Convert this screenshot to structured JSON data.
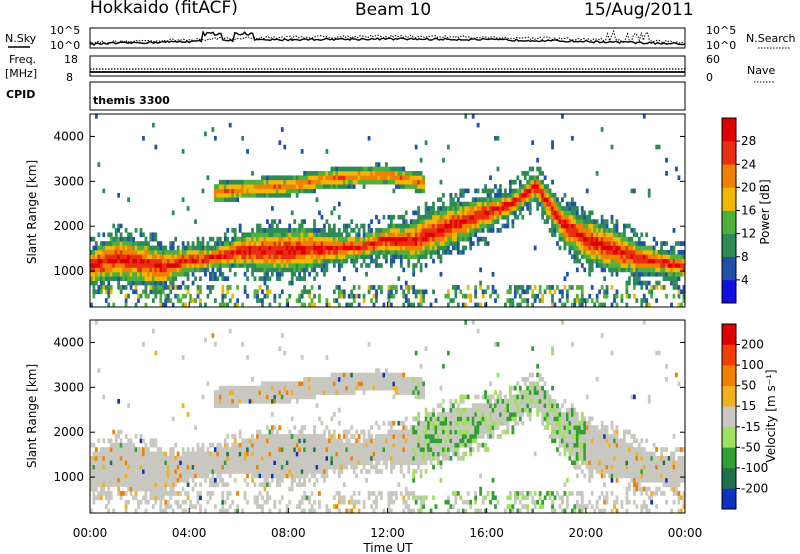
{
  "header": {
    "station": "Hokkaido (fitACF)",
    "beam": "Beam 10",
    "date": "15/Aug/2011"
  },
  "top_strip": {
    "nsky_label": "N.Sky",
    "nsearch_label": "N.Search",
    "nsky_ticks": [
      "10^5",
      "10^0"
    ],
    "nsearch_ticks": [
      "10^5",
      "10^0"
    ],
    "freq_label_line1": "Freq.",
    "freq_label_line2": "[MHz]",
    "freq_ticks": [
      "18",
      "8"
    ],
    "nave_label": "Nave",
    "nave_ticks": [
      "60",
      "0"
    ],
    "cpid_label": "CPID",
    "cpid_value": "themis 3300"
  },
  "chart_data": [
    {
      "type": "heatmap",
      "name": "power-panel",
      "ylabel": "Slant Range [km]",
      "yticks": [
        1000,
        2000,
        3000,
        4000
      ],
      "ylim": [
        200,
        4500
      ],
      "xlim": [
        0,
        24
      ],
      "colorbar": {
        "label": "Power [dB]",
        "ticks": [
          "4",
          "8",
          "12",
          "16",
          "20",
          "24",
          "28"
        ],
        "colors": [
          "#1010e0",
          "#2050a8",
          "#2e8b57",
          "#50b03c",
          "#f0b800",
          "#f08000",
          "#e83010",
          "#e00000"
        ]
      },
      "echo_band_center_km": [
        [
          0,
          1100
        ],
        [
          1,
          1300
        ],
        [
          2,
          1200
        ],
        [
          3,
          1100
        ],
        [
          4,
          1250
        ],
        [
          5,
          1300
        ],
        [
          6,
          1450
        ],
        [
          7,
          1450
        ],
        [
          8,
          1450
        ],
        [
          9,
          1500
        ],
        [
          10,
          1500
        ],
        [
          11,
          1550
        ],
        [
          12,
          1700
        ],
        [
          13,
          1650
        ],
        [
          14,
          1900
        ],
        [
          15,
          2100
        ],
        [
          16,
          2300
        ],
        [
          17,
          2500
        ],
        [
          18,
          2900
        ],
        [
          19,
          2100
        ],
        [
          20,
          1700
        ],
        [
          21,
          1500
        ],
        [
          22,
          1300
        ],
        [
          23,
          1200
        ],
        [
          24,
          1100
        ]
      ],
      "upper_band_center_km": [
        [
          5,
          2750
        ],
        [
          6.5,
          2850
        ],
        [
          8,
          2900
        ],
        [
          9.5,
          3050
        ],
        [
          10.5,
          3100
        ],
        [
          12,
          3150
        ],
        [
          13.5,
          2950
        ]
      ]
    },
    {
      "type": "heatmap",
      "name": "velocity-panel",
      "ylabel": "Slant Range [km]",
      "yticks": [
        1000,
        2000,
        3000,
        4000
      ],
      "ylim": [
        200,
        4500
      ],
      "xlim": [
        0,
        24
      ],
      "colorbar": {
        "label": "Velocity [m s⁻¹]",
        "ticks": [
          "200",
          "100",
          "50",
          "15",
          "-15",
          "-50",
          "-100",
          "-200"
        ],
        "colors": [
          "#1030c0",
          "#207050",
          "#30a030",
          "#a0e060",
          "#c8c8c0",
          "#f0b020",
          "#f08000",
          "#f04000",
          "#e00000"
        ]
      }
    }
  ],
  "x_axis": {
    "ticks": [
      "00:00",
      "04:00",
      "08:00",
      "12:00",
      "16:00",
      "20:00",
      "00:00"
    ],
    "label": "Time UT"
  }
}
